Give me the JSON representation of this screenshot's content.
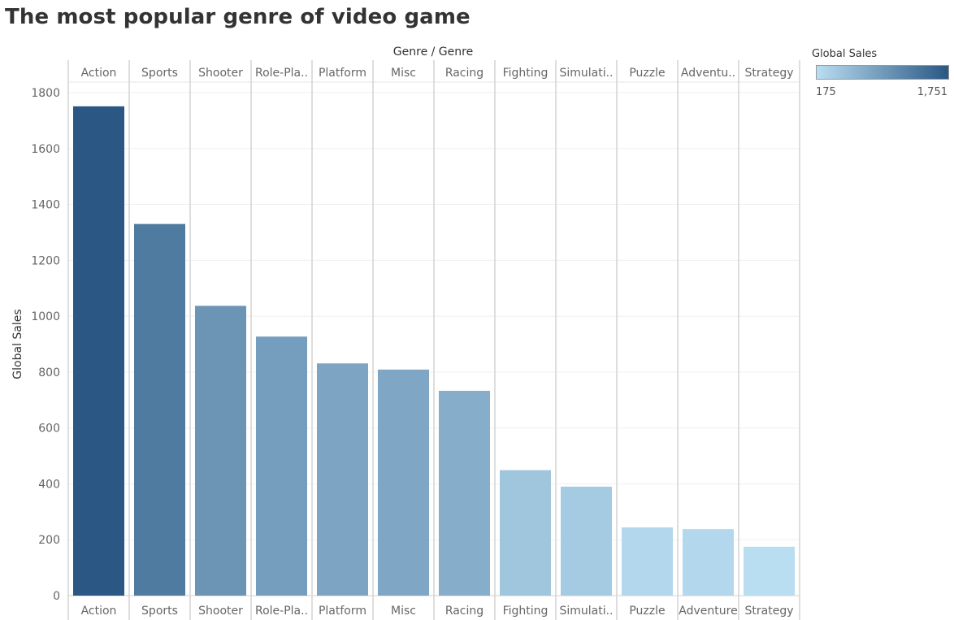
{
  "title": "The most popular genre of video game",
  "legend": {
    "title": "Global Sales",
    "min_label": "175",
    "max_label": "1,751",
    "color_low": "#b9ddf1",
    "color_high": "#2a5783"
  },
  "chart_data": {
    "type": "bar",
    "header_label": "Genre / Genre",
    "ylabel": "Global Sales",
    "ylim": [
      0,
      1800
    ],
    "yticks": [
      0,
      200,
      400,
      600,
      800,
      1000,
      1200,
      1400,
      1600,
      1800
    ],
    "grid": true,
    "categories": [
      "Action",
      "Sports",
      "Shooter",
      "Role-Playing",
      "Platform",
      "Misc",
      "Racing",
      "Fighting",
      "Simulation",
      "Puzzle",
      "Adventure",
      "Strategy"
    ],
    "top_labels": [
      "Action",
      "Sports",
      "Shooter",
      "Role-Pla..",
      "Platform",
      "Misc",
      "Racing",
      "Fighting",
      "Simulati..",
      "Puzzle",
      "Adventu..",
      "Strategy"
    ],
    "bottom_labels": [
      "Action",
      "Sports",
      "Shooter",
      "Role-Pla..",
      "Platform",
      "Misc",
      "Racing",
      "Fighting",
      "Simulati..",
      "Puzzle",
      "Adventure",
      "Strategy"
    ],
    "values": [
      1751,
      1330,
      1037,
      927,
      831,
      809,
      733,
      449,
      390,
      244,
      238,
      175
    ]
  }
}
